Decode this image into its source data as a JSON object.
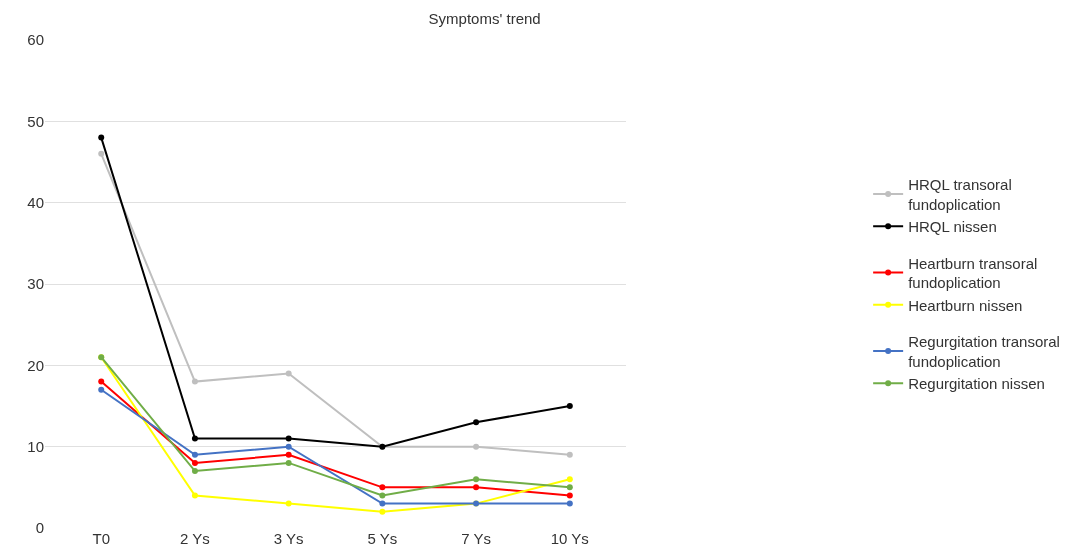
{
  "chart_data": {
    "type": "line",
    "title": "Symptoms' trend",
    "categories": [
      "T0",
      "2 Ys",
      "3 Ys",
      "5 Ys",
      "7 Ys",
      "10 Ys"
    ],
    "series": [
      {
        "name": "HRQL transoral fundoplication",
        "color": "#bfbfbf",
        "values": [
          46,
          18,
          19,
          10,
          10,
          9
        ]
      },
      {
        "name": "HRQL nissen",
        "color": "#000000",
        "values": [
          48,
          11,
          11,
          10,
          13,
          15
        ]
      },
      {
        "name": "Heartburn transoral fundoplication",
        "color": "#ff0000",
        "values": [
          18,
          8,
          9,
          5,
          5,
          4
        ]
      },
      {
        "name": "Heartburn nissen",
        "color": "#ffff00",
        "values": [
          21,
          4,
          3,
          2,
          3,
          6
        ]
      },
      {
        "name": "Regurgitation transoral fundoplication",
        "color": "#4472c4",
        "values": [
          17,
          9,
          10,
          3,
          3,
          3
        ]
      },
      {
        "name": "Regurgitation nissen",
        "color": "#70ad47",
        "values": [
          21,
          7,
          8,
          4,
          6,
          5
        ]
      }
    ],
    "ylim": [
      0,
      60
    ],
    "yticks": [
      0,
      10,
      20,
      30,
      40,
      50,
      60
    ],
    "grid": "y",
    "legend": "right",
    "marker": "circle",
    "line_style": "solid"
  }
}
